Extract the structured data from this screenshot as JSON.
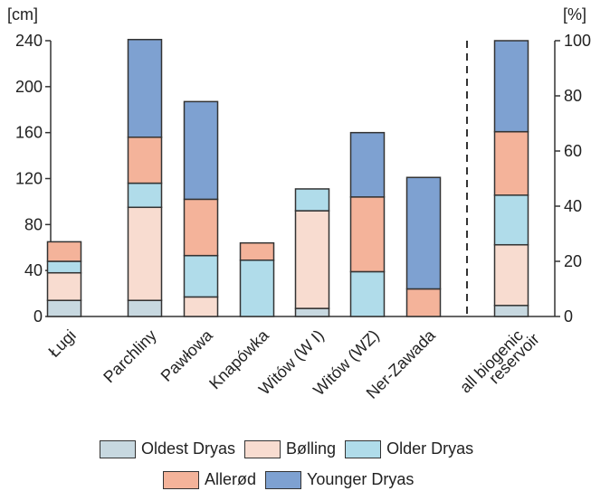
{
  "chart_data": {
    "type": "bar",
    "stacked": true,
    "y_left_label": "[cm]",
    "y_right_label": "[%]",
    "ylim_left": [
      0,
      240
    ],
    "ylim_right": [
      0,
      100
    ],
    "yticks_left": [
      "0",
      "40",
      "80",
      "120",
      "160",
      "200",
      "240"
    ],
    "yticks_right": [
      "0",
      "20",
      "40",
      "60",
      "80",
      "100"
    ],
    "categories": [
      "Ługi",
      "Parchliny",
      "Pawłowa",
      "Knapówka",
      "Witów (W I)",
      "Witów (WZ)",
      "Ner-Zawada"
    ],
    "extra_category": {
      "label_lines": [
        "all biogenic",
        "reservoir"
      ],
      "axis": "percent"
    },
    "separator_line": true,
    "series": [
      {
        "name": "Oldest Dryas",
        "color": "#c7d8e0",
        "values": [
          14,
          14,
          0,
          0,
          7,
          0,
          0
        ],
        "extra_value": 4
      },
      {
        "name": "Bølling",
        "color": "#f8dcd0",
        "values": [
          24,
          81,
          17,
          0,
          85,
          0,
          0
        ],
        "extra_value": 22
      },
      {
        "name": "Older Dryas",
        "color": "#b0dcea",
        "values": [
          10,
          21,
          36,
          49,
          19,
          39,
          0
        ],
        "extra_value": 18
      },
      {
        "name": "Allerød",
        "color": "#f4b39a",
        "values": [
          17,
          40,
          49,
          15,
          0,
          65,
          24
        ],
        "extra_value": 23
      },
      {
        "name": "Younger Dryas",
        "color": "#7ea1d1",
        "values": [
          0,
          85,
          85,
          0,
          0,
          56,
          97
        ],
        "extra_value": 33
      }
    ]
  }
}
